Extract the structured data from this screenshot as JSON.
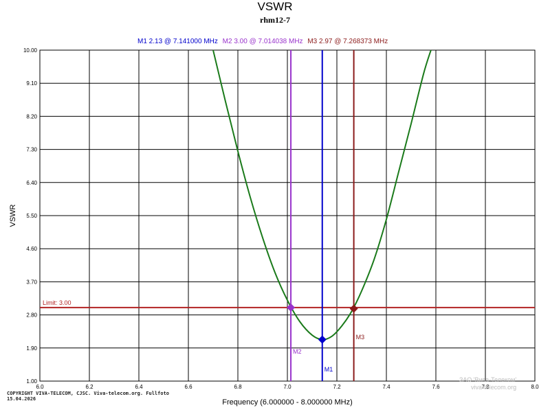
{
  "colors": {
    "curve": "#1a7a1a",
    "m1": "#0000cc",
    "m2": "#9933cc",
    "m3": "#8b1a1a",
    "limit": "#b22222",
    "grid": "#000000"
  },
  "markers_header": {
    "m1": "M1  2.13 @ 7.141000 MHz",
    "m2": "M2  3.00 @ 7.014038 MHz",
    "m3": "M3  2.97 @ 7.268373 MHz"
  },
  "footer": {
    "copyright_line1": "COPYRIGHT VIVA-TELECOM, CJSC. Viva-telecom.org. Fullfoto",
    "copyright_line2": "15.04.2026",
    "watermark_line1": "ЗАО 'Вива-Телеком'",
    "watermark_line2": "viva-telecom.org"
  },
  "chart_data": {
    "type": "line",
    "title": "VSWR",
    "subtitle": "rhm12-7",
    "xlabel": "Frequency (6.000000 - 8.000000 MHz)",
    "ylabel": "VSWR",
    "xlim": [
      6.0,
      8.0
    ],
    "ylim": [
      1.0,
      10.0
    ],
    "xticks": [
      6.0,
      6.2,
      6.4,
      6.6,
      6.8,
      7.0,
      7.2,
      7.4,
      7.6,
      7.8,
      8.0
    ],
    "xtick_labels": [
      "6.0",
      "6.2",
      "6.4",
      "6.6",
      "6.8",
      "7.0",
      "7.2",
      "7.4",
      "7.6",
      "7.8",
      "8.0"
    ],
    "yticks": [
      1.0,
      1.9,
      2.8,
      3.7,
      4.6,
      5.5,
      6.4,
      7.3,
      8.2,
      9.1,
      10.0
    ],
    "ytick_labels": [
      "1.00",
      "1.90",
      "2.80",
      "3.70",
      "4.60",
      "5.50",
      "6.40",
      "7.30",
      "8.20",
      "9.10",
      "10.00"
    ],
    "grid": true,
    "limit": {
      "value": 3.0,
      "label": "Limit: 3.00"
    },
    "series": [
      {
        "name": "VSWR",
        "x": [
          6.7,
          6.75,
          6.8,
          6.85,
          6.9,
          6.95,
          7.0,
          7.05,
          7.1,
          7.141,
          7.18,
          7.22,
          7.26,
          7.3,
          7.35,
          7.4,
          7.45,
          7.5,
          7.55,
          7.58
        ],
        "y": [
          10.0,
          8.6,
          7.25,
          6.0,
          4.9,
          3.95,
          3.2,
          2.62,
          2.25,
          2.13,
          2.22,
          2.5,
          2.9,
          3.45,
          4.3,
          5.4,
          6.7,
          8.0,
          9.35,
          10.0
        ]
      }
    ],
    "markers": [
      {
        "id": "M1",
        "label": "M1",
        "x": 7.141,
        "y": 2.13
      },
      {
        "id": "M2",
        "label": "M2",
        "x": 7.014038,
        "y": 3.0
      },
      {
        "id": "M3",
        "label": "M3",
        "x": 7.268373,
        "y": 2.97
      }
    ]
  }
}
